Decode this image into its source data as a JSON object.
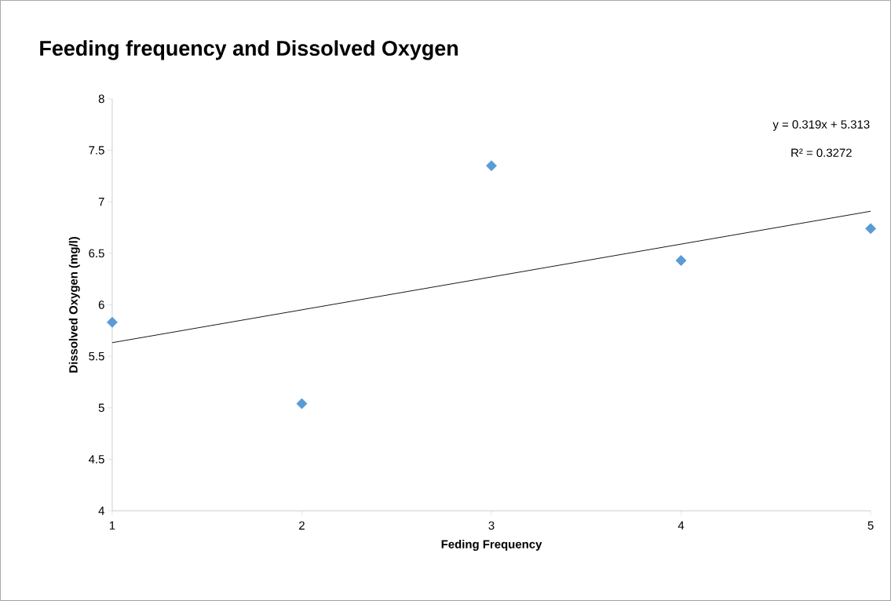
{
  "chart_data": {
    "type": "scatter",
    "title": "Feeding frequency and Dissolved Oxygen",
    "xlabel": "Feding Frequency",
    "ylabel": "Dissolved Oxygen (mg/l)",
    "x": [
      1,
      2,
      3,
      4,
      5
    ],
    "series": [
      {
        "color": "#5b9bd5",
        "marker": "diamond",
        "values": [
          5.83,
          5.04,
          7.35,
          6.43,
          6.74
        ]
      },
      {
        "type": "line",
        "color": "#000000",
        "marker": "none",
        "x": [
          1,
          5
        ],
        "values": [
          5.632,
          6.908
        ]
      }
    ],
    "annotations": [
      "y = 0.319x + 5.313",
      "R² = 0.3272"
    ],
    "xlim": [
      1,
      5
    ],
    "xticks": [
      1,
      2,
      3,
      4,
      5
    ],
    "ylim": [
      4,
      8
    ],
    "yticks": [
      4,
      4.5,
      5,
      5.5,
      6,
      6.5,
      7,
      7.5,
      8
    ],
    "grid": false
  }
}
